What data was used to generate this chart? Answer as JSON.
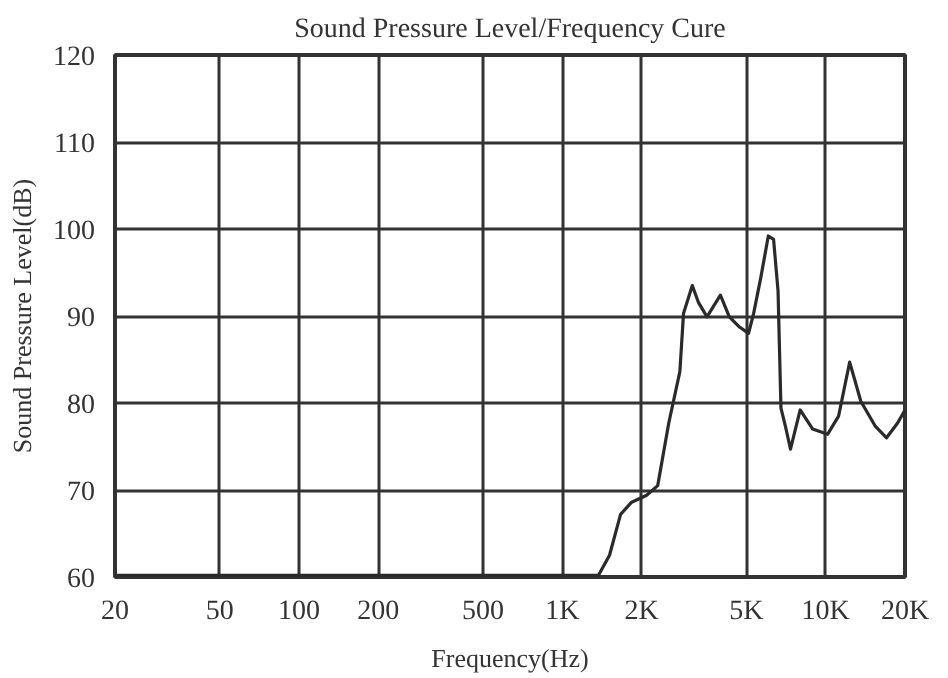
{
  "chart_data": {
    "type": "line",
    "title": "Sound Pressure Level/Frequency Cure",
    "xlabel": "Frequency(Hz)",
    "ylabel": "Sound Pressure Level(dB)",
    "log": "x",
    "xlim": [
      20,
      20000
    ],
    "ylim": [
      60,
      120
    ],
    "xticks": [
      20,
      50,
      100,
      200,
      500,
      {
        "value": 1000,
        "label": "1K"
      },
      {
        "value": 2000,
        "label": "2K"
      },
      {
        "value": 5000,
        "label": "5K"
      },
      {
        "value": 10000,
        "label": "10K"
      },
      {
        "value": 20000,
        "label": "20K"
      }
    ],
    "yticks": [
      60,
      70,
      80,
      90,
      100,
      110,
      120
    ],
    "grid": true,
    "marker": "none",
    "line_style": "solid",
    "series": [
      {
        "color": "#2a2a2a",
        "x": [
          20,
          1371,
          1510,
          1663,
          1832,
          2089,
          2301,
          2535,
          2793,
          2884,
          3114,
          3281,
          3540,
          3981,
          4305,
          4677,
          5093,
          5324,
          5675,
          6053,
          6338,
          6590,
          6761,
          7031,
          7349,
          7998,
          8925,
          10160,
          11190,
          12330,
          13590,
          15450,
          17020,
          18750,
          20000
        ],
        "values": [
          60.2,
          60.2,
          62.5,
          67.2,
          68.6,
          69.4,
          70.5,
          77.7,
          83.6,
          90.3,
          93.5,
          91.6,
          89.9,
          92.4,
          89.9,
          88.8,
          88.0,
          90.3,
          94.5,
          99.2,
          98.8,
          92.9,
          79.4,
          77.3,
          74.7,
          79.2,
          77.0,
          76.4,
          78.5,
          84.7,
          80.2,
          77.3,
          76.0,
          77.7,
          79.2
        ]
      }
    ]
  }
}
